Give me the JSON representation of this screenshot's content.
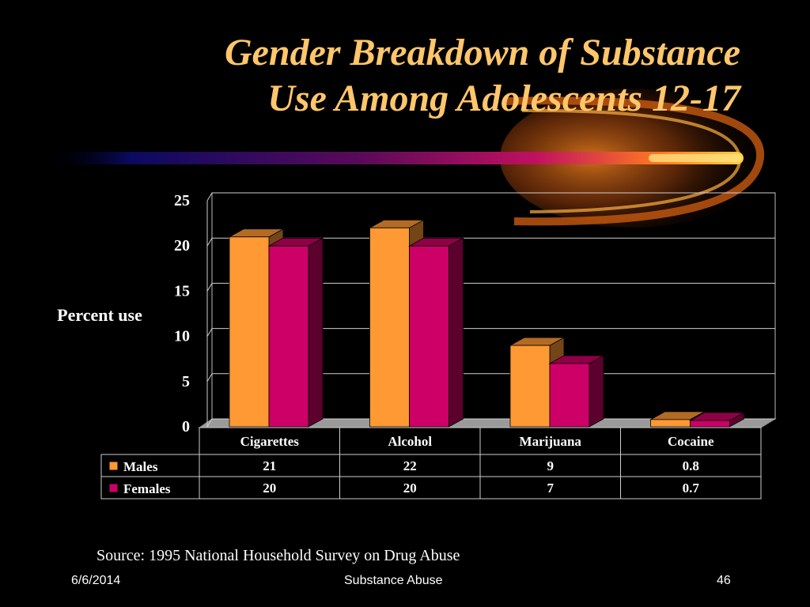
{
  "slide": {
    "title_line1": "Gender Breakdown of Substance",
    "title_line2": "Use Among Adolescents 12-17",
    "source": "Source: 1995 National Household Survey on Drug Abuse",
    "footer_date": "6/6/2014",
    "footer_center": "Substance Abuse",
    "footer_page": "46"
  },
  "colors": {
    "title": "#ffc66b",
    "males": "#ff9933",
    "females": "#cc0066",
    "background": "#000000"
  },
  "chart_data": {
    "type": "bar",
    "ylabel": "Percent use",
    "ylim": [
      0,
      25
    ],
    "yticks": [
      0,
      5,
      10,
      15,
      20,
      25
    ],
    "categories": [
      "Cigarettes",
      "Alcohol",
      "Marijuana",
      "Cocaine"
    ],
    "series": [
      {
        "name": "Males",
        "values": [
          21,
          22,
          9,
          0.8
        ],
        "labels": [
          "21",
          "22",
          "9",
          "0.8"
        ]
      },
      {
        "name": "Females",
        "values": [
          20,
          20,
          7,
          0.7
        ],
        "labels": [
          "20",
          "20",
          "7",
          "0.7"
        ]
      }
    ],
    "grid": true,
    "data_table": true
  }
}
